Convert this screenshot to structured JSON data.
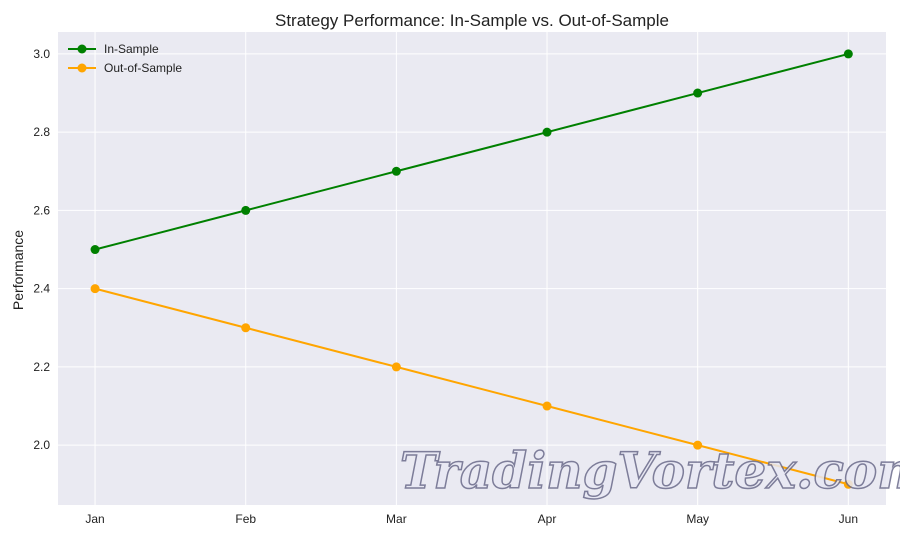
{
  "chart_data": {
    "type": "line",
    "title": "Strategy Performance: In-Sample vs. Out-of-Sample",
    "xlabel": "",
    "ylabel": "Performance",
    "categories": [
      "Jan",
      "Feb",
      "Mar",
      "Apr",
      "May",
      "Jun"
    ],
    "series": [
      {
        "name": "In-Sample",
        "values": [
          2.5,
          2.6,
          2.7,
          2.8,
          2.9,
          3.0
        ],
        "color": "#008000"
      },
      {
        "name": "Out-of-Sample",
        "values": [
          2.4,
          2.3,
          2.2,
          2.1,
          2.0,
          1.9
        ],
        "color": "#FFA500"
      }
    ],
    "ylim": [
      1.847,
      3.056
    ],
    "yticks": [
      "2.0",
      "2.2",
      "2.4",
      "2.6",
      "2.8",
      "3.0"
    ],
    "grid": true,
    "legend": "top-left",
    "background": "#EAEAF2"
  },
  "watermark": "TradingVortex.com"
}
